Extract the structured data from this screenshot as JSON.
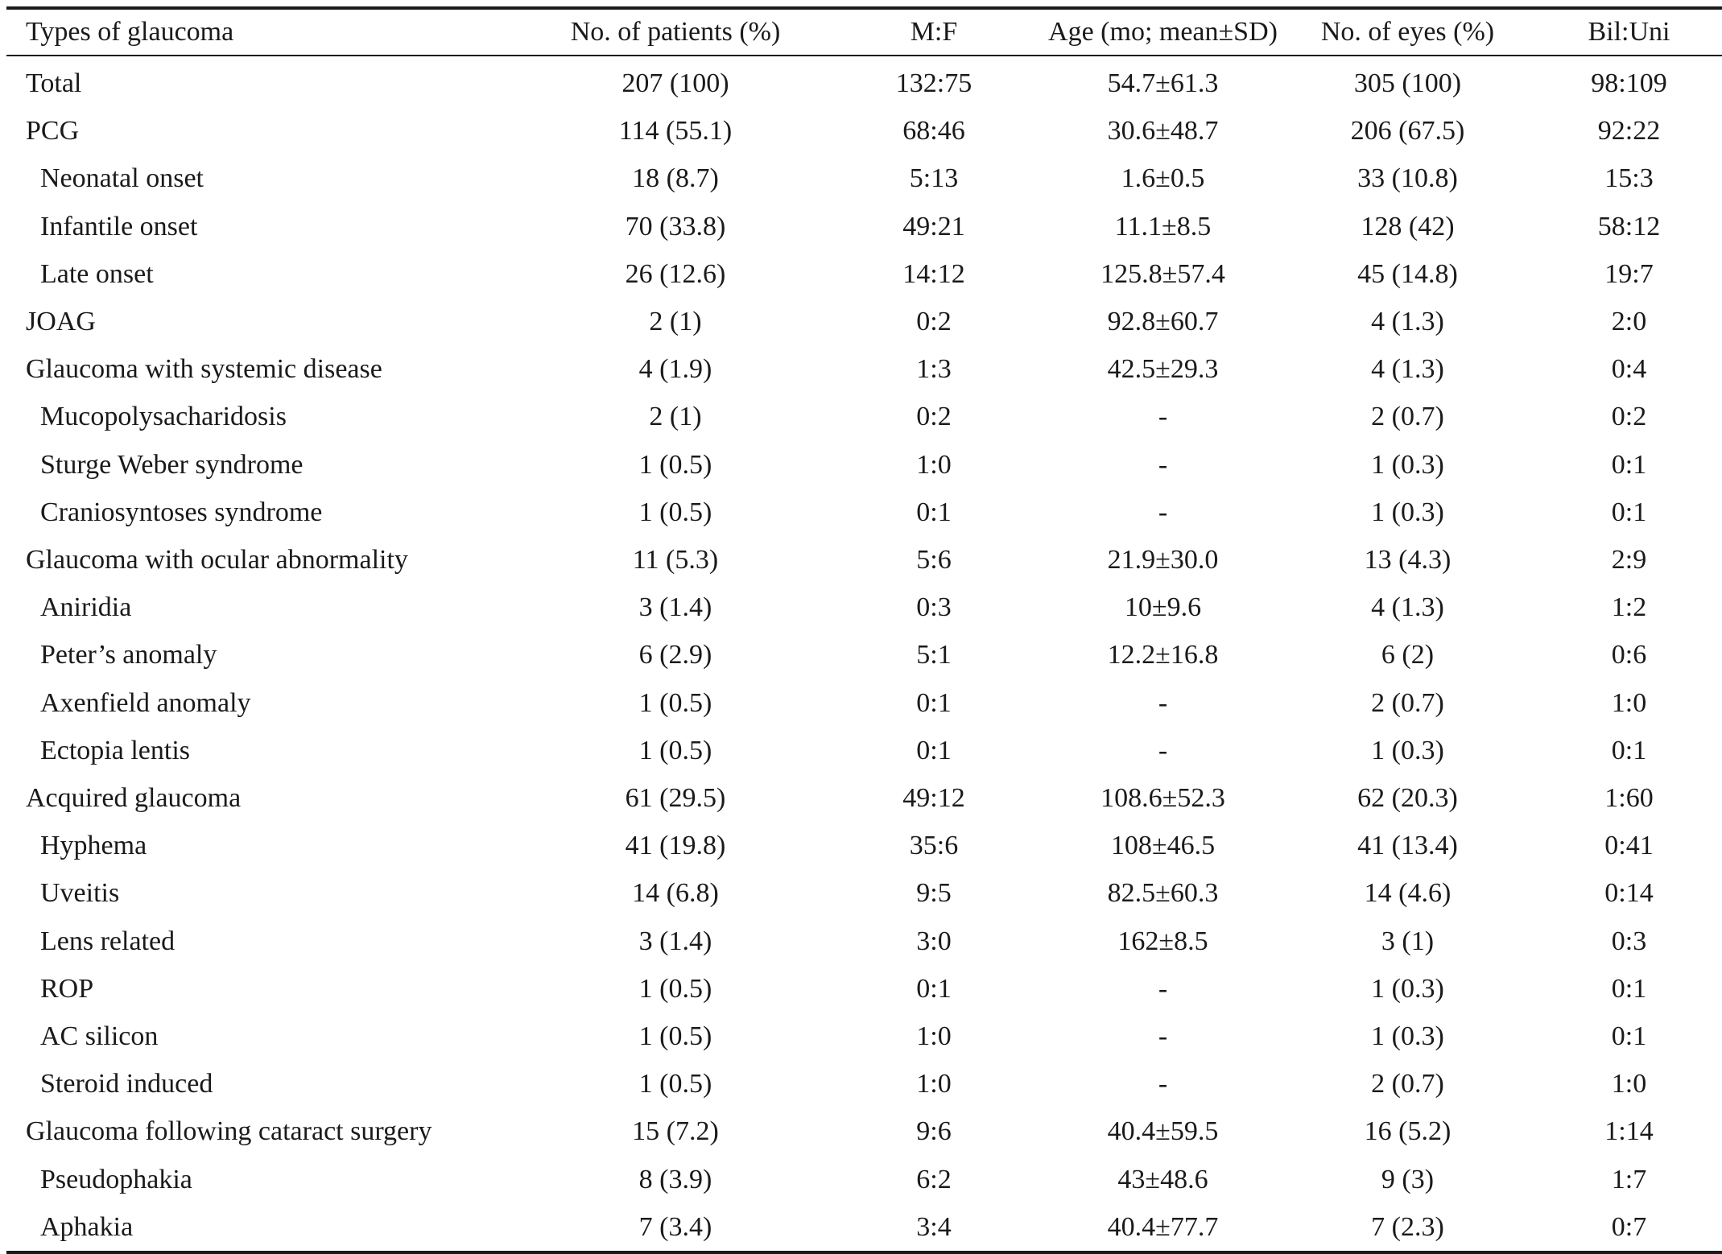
{
  "table": {
    "headers": [
      "Types of glaucoma",
      "No. of patients (%)",
      "M:F",
      "Age (mo; mean±SD)",
      "No. of eyes (%)",
      "Bil:Uni"
    ],
    "rows": [
      {
        "type": "Total",
        "indent": false,
        "patients": "207 (100)",
        "mf": "132:75",
        "age": "54.7±61.3",
        "eyes": "305 (100)",
        "bil_uni": "98:109"
      },
      {
        "type": "PCG",
        "indent": false,
        "patients": "114 (55.1)",
        "mf": "68:46",
        "age": "30.6±48.7",
        "eyes": "206 (67.5)",
        "bil_uni": "92:22"
      },
      {
        "type": "Neonatal onset",
        "indent": true,
        "patients": "18 (8.7)",
        "mf": "5:13",
        "age": "1.6±0.5",
        "eyes": "33 (10.8)",
        "bil_uni": "15:3"
      },
      {
        "type": "Infantile onset",
        "indent": true,
        "patients": "70 (33.8)",
        "mf": "49:21",
        "age": "11.1±8.5",
        "eyes": "128 (42)",
        "bil_uni": "58:12"
      },
      {
        "type": "Late onset",
        "indent": true,
        "patients": "26 (12.6)",
        "mf": "14:12",
        "age": "125.8±57.4",
        "eyes": "45 (14.8)",
        "bil_uni": "19:7"
      },
      {
        "type": "JOAG",
        "indent": false,
        "patients": "2 (1)",
        "mf": "0:2",
        "age": "92.8±60.7",
        "eyes": "4 (1.3)",
        "bil_uni": "2:0"
      },
      {
        "type": "Glaucoma with systemic disease",
        "indent": false,
        "patients": "4 (1.9)",
        "mf": "1:3",
        "age": "42.5±29.3",
        "eyes": "4 (1.3)",
        "bil_uni": "0:4"
      },
      {
        "type": "Mucopolysacharidosis",
        "indent": true,
        "patients": "2 (1)",
        "mf": "0:2",
        "age": "-",
        "eyes": "2 (0.7)",
        "bil_uni": "0:2"
      },
      {
        "type": "Sturge Weber syndrome",
        "indent": true,
        "patients": "1 (0.5)",
        "mf": "1:0",
        "age": "-",
        "eyes": "1 (0.3)",
        "bil_uni": "0:1"
      },
      {
        "type": "Craniosyntoses  syndrome",
        "indent": true,
        "patients": "1 (0.5)",
        "mf": "0:1",
        "age": "-",
        "eyes": "1 (0.3)",
        "bil_uni": "0:1"
      },
      {
        "type": "Glaucoma with ocular abnormality",
        "indent": false,
        "patients": "11 (5.3)",
        "mf": "5:6",
        "age": "21.9±30.0",
        "eyes": "13 (4.3)",
        "bil_uni": "2:9"
      },
      {
        "type": "Aniridia",
        "indent": true,
        "patients": "3 (1.4)",
        "mf": "0:3",
        "age": "10±9.6",
        "eyes": "4 (1.3)",
        "bil_uni": "1:2"
      },
      {
        "type": "Peter’s  anomaly",
        "indent": true,
        "patients": "6 (2.9)",
        "mf": "5:1",
        "age": "12.2±16.8",
        "eyes": "6 (2)",
        "bil_uni": "0:6"
      },
      {
        "type": "Axenfield anomaly",
        "indent": true,
        "patients": "1 (0.5)",
        "mf": "0:1",
        "age": "-",
        "eyes": "2 (0.7)",
        "bil_uni": "1:0"
      },
      {
        "type": "Ectopia lentis",
        "indent": true,
        "patients": "1 (0.5)",
        "mf": "0:1",
        "age": "-",
        "eyes": "1 (0.3)",
        "bil_uni": "0:1"
      },
      {
        "type": "Acquired glaucoma",
        "indent": false,
        "patients": "61 (29.5)",
        "mf": "49:12",
        "age": "108.6±52.3",
        "eyes": "62 (20.3)",
        "bil_uni": "1:60"
      },
      {
        "type": "Hyphema",
        "indent": true,
        "patients": "41 (19.8)",
        "mf": "35:6",
        "age": "108±46.5",
        "eyes": "41 (13.4)",
        "bil_uni": "0:41"
      },
      {
        "type": "Uveitis",
        "indent": true,
        "patients": "14 (6.8)",
        "mf": "9:5",
        "age": "82.5±60.3",
        "eyes": "14 (4.6)",
        "bil_uni": "0:14"
      },
      {
        "type": "Lens related",
        "indent": true,
        "patients": "3 (1.4)",
        "mf": "3:0",
        "age": "162±8.5",
        "eyes": "3 (1)",
        "bil_uni": "0:3"
      },
      {
        "type": "ROP",
        "indent": true,
        "patients": "1 (0.5)",
        "mf": "0:1",
        "age": "-",
        "eyes": "1 (0.3)",
        "bil_uni": "0:1"
      },
      {
        "type": "AC silicon",
        "indent": true,
        "patients": "1 (0.5)",
        "mf": "1:0",
        "age": "-",
        "eyes": "1 (0.3)",
        "bil_uni": "0:1"
      },
      {
        "type": "Steroid induced",
        "indent": true,
        "patients": "1 (0.5)",
        "mf": "1:0",
        "age": "-",
        "eyes": "2 (0.7)",
        "bil_uni": "1:0"
      },
      {
        "type": "Glaucoma following cataract surgery",
        "indent": false,
        "patients": "15 (7.2)",
        "mf": "9:6",
        "age": "40.4±59.5",
        "eyes": "16 (5.2)",
        "bil_uni": "1:14"
      },
      {
        "type": "Pseudophakia",
        "indent": true,
        "patients": "8 (3.9)",
        "mf": "6:2",
        "age": "43±48.6",
        "eyes": "9 (3)",
        "bil_uni": "1:7"
      },
      {
        "type": "Aphakia",
        "indent": true,
        "patients": "7 (3.4)",
        "mf": "3:4",
        "age": "40.4±77.7",
        "eyes": "7 (2.3)",
        "bil_uni": "0:7"
      }
    ]
  }
}
